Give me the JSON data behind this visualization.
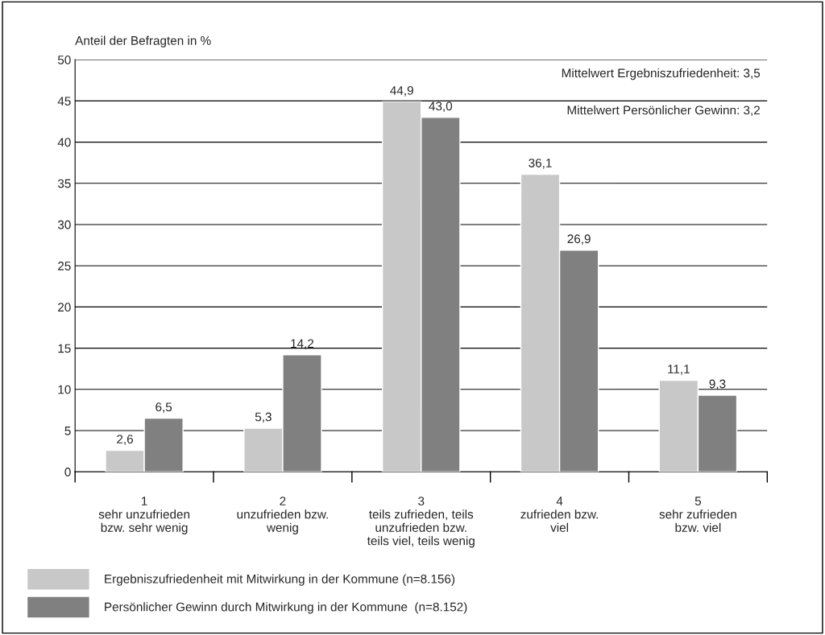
{
  "chart_data": {
    "type": "bar",
    "ylabel": "Anteil der Befragten in %",
    "categories": [
      "1\nsehr unzufrieden\nbzw. sehr wenig",
      "2\nunzufrieden bzw.\nwenig",
      "3\nteils zufrieden, teils\nunzufrieden bzw.\nteils viel, teils wenig",
      "4\nzufrieden bzw.\nviel",
      "5\nsehr zufrieden\nbzw. viel"
    ],
    "series": [
      {
        "name": "Ergebniszufriedenheit mit Mitwirkung in der Kommune (n=8.156)",
        "color": "#c8c8c8",
        "values": [
          2.6,
          5.3,
          44.9,
          36.1,
          11.1
        ],
        "value_labels": [
          "2,6",
          "5,3",
          "44,9",
          "36,1",
          "11,1"
        ]
      },
      {
        "name": "Persönlicher Gewinn durch Mitwirkung in der Kommune  (n=8.152)",
        "color": "#808080",
        "values": [
          6.5,
          14.2,
          43.0,
          26.9,
          9.3
        ],
        "value_labels": [
          "6,5",
          "14,2",
          "43,0",
          "26,9",
          "9,3"
        ]
      }
    ],
    "ylim": [
      0,
      50
    ],
    "yticks": [
      0,
      5,
      10,
      15,
      20,
      25,
      30,
      35,
      40,
      45,
      50
    ],
    "grid": "y",
    "legend": "bottom",
    "annotations": [
      "Mittelwert Ergebniszufriedenheit: 3,5",
      "Mittelwert Persönlicher Gewinn: 3,2"
    ]
  }
}
